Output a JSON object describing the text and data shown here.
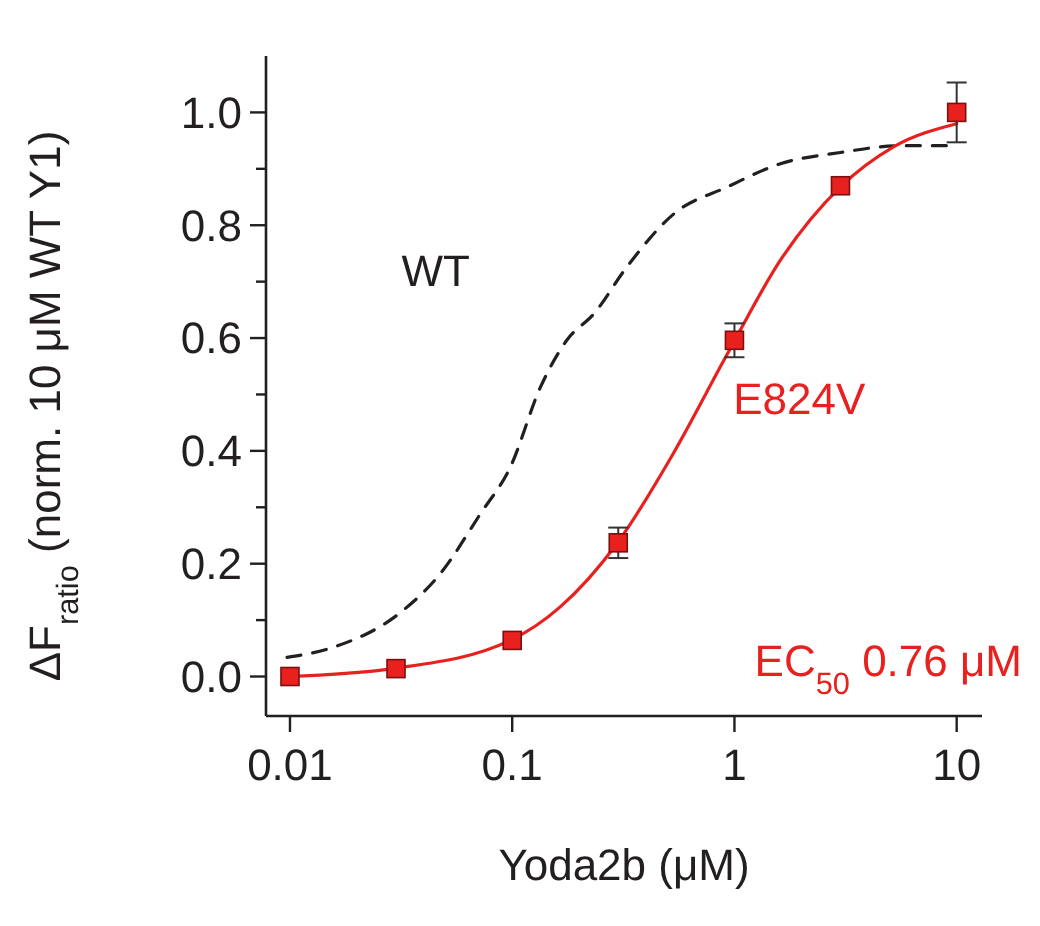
{
  "chart_data": {
    "type": "line",
    "xlabel": "Yoda2b (μM)",
    "ylabel": "ΔF$_{ratio}$ (norm. 10 μM WT Y1)",
    "log": "x",
    "xlim": [
      0.0078,
      13
    ],
    "xticks": [
      0.01,
      0.1,
      1,
      10
    ],
    "ylim": [
      -0.07,
      1.1
    ],
    "yticks": [
      {
        "value": 0.0,
        "label": "0.0"
      },
      {
        "value": 0.1,
        "label": null
      },
      0.2,
      {
        "value": 0.3,
        "label": null
      },
      0.4,
      {
        "value": 0.5,
        "label": null
      },
      0.6,
      {
        "value": 0.7,
        "label": null
      },
      0.8,
      {
        "value": 0.9,
        "label": null
      },
      {
        "value": 1.0,
        "label": "1.0"
      }
    ],
    "series": [
      {
        "name": "WT",
        "color": "#231f20",
        "line_style": "dashed",
        "marker": "none",
        "x": [
          0.0097,
          0.0157,
          0.0313,
          0.0474,
          0.0718,
          0.098,
          0.134,
          0.176,
          0.233,
          0.328,
          0.533,
          0.93,
          1.61,
          3.0,
          5.6,
          10
        ],
        "values": [
          0.034,
          0.052,
          0.113,
          0.182,
          0.288,
          0.371,
          0.513,
          0.596,
          0.643,
          0.726,
          0.82,
          0.868,
          0.909,
          0.929,
          0.941,
          0.941
        ]
      },
      {
        "name": "E824V",
        "color": "#e8211f",
        "line_style": "solid",
        "marker": "none",
        "x": [
          0.0097,
          0.029,
          0.098,
          0.164,
          0.3,
          0.53,
          0.93,
          1.61,
          3.0,
          5.2,
          10
        ],
        "values": [
          0.0,
          0.014,
          0.064,
          0.123,
          0.239,
          0.395,
          0.572,
          0.738,
          0.868,
          0.939,
          0.98
        ]
      },
      {
        "type": "scatter",
        "color": "#e8211f",
        "marker": "square",
        "x": [
          0.01,
          0.03,
          0.1,
          0.3,
          1,
          3,
          10
        ],
        "values": [
          0.0,
          0.014,
          0.064,
          0.237,
          0.596,
          0.87,
          1.0
        ],
        "errors": [
          null,
          null,
          null,
          0.027,
          0.03,
          null,
          0.053
        ]
      }
    ],
    "annotations": [
      "EC$_{50}$ 0.76 μM"
    ]
  }
}
